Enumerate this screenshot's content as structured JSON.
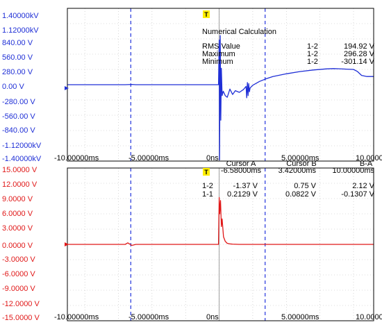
{
  "trigger_marker": "T",
  "colors": {
    "voltage_trace": "#1f2fd6",
    "current_trace": "#e01818",
    "cursor_line": "#2233dd",
    "grid": "#bbbbbb",
    "frame": "#000000"
  },
  "upper_panel": {
    "y_tick_labels": [
      "1.40000kV",
      "1.12000kV",
      "840.00 V",
      "560.00 V",
      "280.00 V",
      "0.00 V",
      "-280.00 V",
      "-560.00 V",
      "-840.00 V",
      "-1.12000kV",
      "-1.40000kV"
    ],
    "x_tick_labels": [
      "-10.00000ms",
      "-5.00000ms",
      "0ns",
      "5.00000ms",
      "10.00000ms"
    ],
    "numerical_calculation": {
      "title": "Numerical Calculation",
      "rows": [
        {
          "name": "RMS Value",
          "channel": "1-2",
          "value": "194.92 V"
        },
        {
          "name": "Maximum",
          "channel": "1-2",
          "value": "296.28 V"
        },
        {
          "name": "Minimum",
          "channel": "1-2",
          "value": "-301.14 V"
        }
      ]
    }
  },
  "lower_panel": {
    "y_tick_labels": [
      "15.0000 V",
      "12.0000 V",
      "9.0000 V",
      "6.0000 V",
      "3.0000 V",
      "0.0000 V",
      "-3.0000 V",
      "-6.0000 V",
      "-9.0000 V",
      "-12.0000 V",
      "-15.0000 V"
    ],
    "x_tick_labels": [
      "-10.00000ms",
      "-5.00000ms",
      "0ns",
      "5.00000ms",
      "10.00000ms"
    ],
    "cursor_table": {
      "headers": [
        "Cursor A",
        "Cursor B",
        "B-A"
      ],
      "times": [
        "-6.58000ms",
        "3.42000ms",
        "10.00000ms"
      ],
      "rows": [
        {
          "channel": "1-2",
          "values": [
            "-1.37 V",
            "0.75 V",
            "2.12 V"
          ]
        },
        {
          "channel": "1-1",
          "values": [
            "0.2129 V",
            "0.0822 V",
            "-0.1307 V"
          ]
        }
      ]
    }
  },
  "chart_data": [
    {
      "type": "line",
      "ylim": [
        -1400,
        1400
      ],
      "xlim": [
        -11.3,
        11.5
      ],
      "grid": true,
      "cursors_x": [
        -6.58,
        3.42
      ],
      "series": [
        {
          "name": "1-2",
          "x": [
            -11.3,
            -7.0,
            -6.5,
            -6.2,
            -0.05,
            0.0,
            0.03,
            0.08,
            0.12,
            0.16,
            0.22,
            0.3,
            0.45,
            0.6,
            0.8,
            1.0,
            1.2,
            1.5,
            1.8,
            2.0,
            2.05,
            2.1,
            2.15,
            2.2,
            2.25,
            2.3,
            2.5,
            3.0,
            3.5,
            4.0,
            5.0,
            6.0,
            7.0,
            8.0,
            8.5,
            9.0,
            9.5,
            10.0,
            10.3,
            10.6,
            11.0,
            11.5
          ],
          "y": [
            0,
            0,
            5,
            0,
            0,
            820,
            -1380,
            900,
            -650,
            300,
            -200,
            -120,
            -200,
            -230,
            -80,
            -180,
            -110,
            -140,
            -90,
            -30,
            -240,
            40,
            -200,
            20,
            -130,
            -60,
            -10,
            60,
            110,
            150,
            200,
            240,
            270,
            290,
            295,
            292,
            285,
            280,
            240,
            170,
            150,
            150
          ]
        }
      ]
    },
    {
      "type": "line",
      "ylim": [
        -15,
        15
      ],
      "xlim": [
        -11.3,
        11.5
      ],
      "grid": true,
      "cursors_x": [
        -6.58,
        3.42
      ],
      "series": [
        {
          "name": "1-1",
          "x": [
            -11.3,
            -7.0,
            -6.8,
            -6.5,
            -6.2,
            -0.05,
            0.0,
            0.04,
            0.1,
            0.16,
            0.22,
            0.32,
            0.45,
            0.6,
            0.8,
            1.0,
            1.5,
            2.0,
            3.0,
            5.0,
            8.0,
            11.5
          ],
          "y": [
            0,
            0,
            0.3,
            -0.2,
            0,
            0,
            9.2,
            6.0,
            8.6,
            3.5,
            5.0,
            1.5,
            0.6,
            0.2,
            0.1,
            0.05,
            0,
            0,
            0,
            0,
            0,
            0
          ]
        }
      ]
    }
  ]
}
